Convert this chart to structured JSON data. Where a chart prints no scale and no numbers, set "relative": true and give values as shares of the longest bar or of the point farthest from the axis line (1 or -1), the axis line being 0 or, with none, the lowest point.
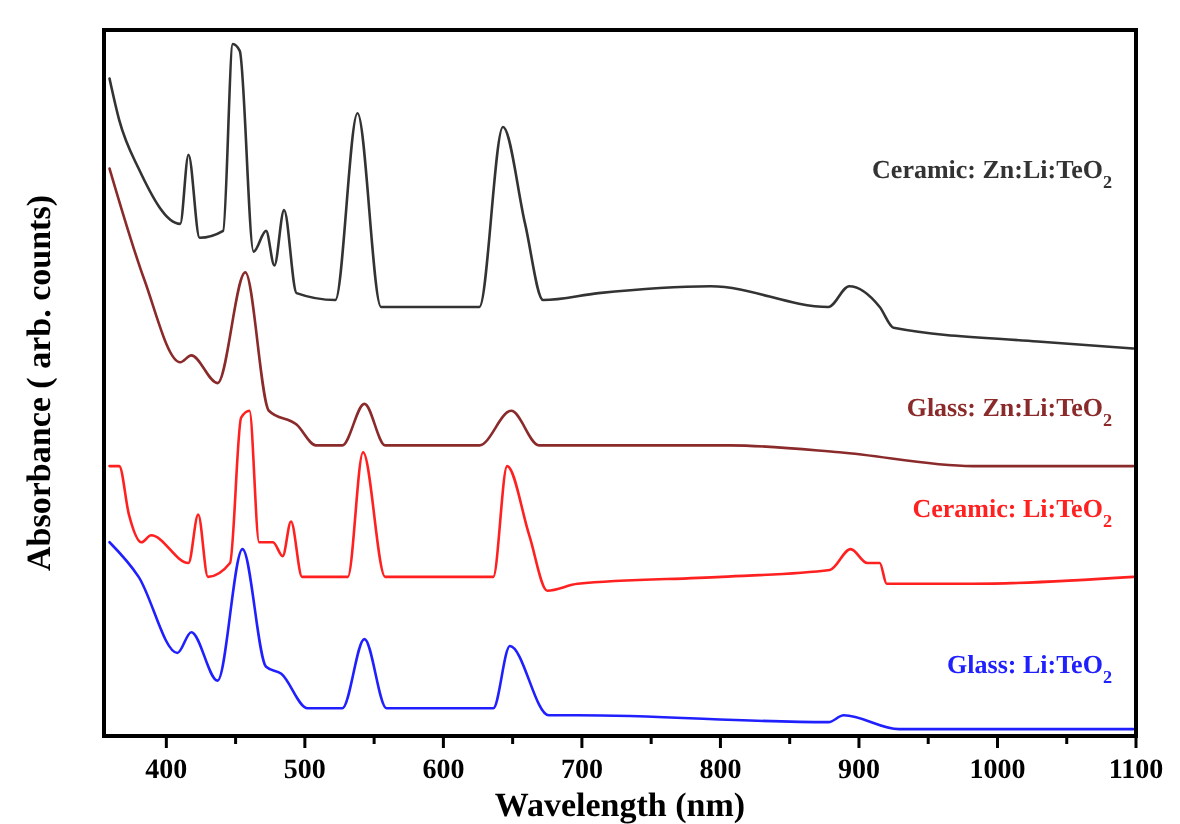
{
  "chart_data": {
    "type": "line",
    "relative": true,
    "xlabel": "Wavelength (nm)",
    "ylabel": "Absorbance ( arb. counts)",
    "xlim": [
      355,
      1100
    ],
    "xticks": [
      400,
      {
        "value": 450,
        "label": null
      },
      500,
      {
        "value": 550,
        "label": null
      },
      600,
      {
        "value": 650,
        "label": null
      },
      700,
      {
        "value": 750,
        "label": null
      },
      800,
      {
        "value": 850,
        "label": null
      },
      900,
      {
        "value": 950,
        "label": null
      },
      1000,
      {
        "value": 1050,
        "label": null
      },
      1100
    ],
    "grid": false,
    "marker": "none",
    "line_style": "solid",
    "series": [
      {
        "name": "Ceramic: Zn:Li:TeO$_{2}$",
        "color": "#333333",
        "x": [
          359,
          366,
          380,
          410,
          416,
          424,
          441,
          448,
          453,
          463,
          472,
          478,
          485,
          494,
          522,
          538,
          555,
          626,
          643,
          659,
          672,
          712,
          793,
          878,
          893,
          915,
          925,
          1029,
          1098
        ],
        "values": [
          0.95,
          0.89,
          0.82,
          0.74,
          0.84,
          0.72,
          0.73,
          1.0,
          0.99,
          0.7,
          0.73,
          0.68,
          0.76,
          0.64,
          0.63,
          0.9,
          0.62,
          0.62,
          0.88,
          0.74,
          0.63,
          0.64,
          0.65,
          0.62,
          0.65,
          0.62,
          0.59,
          0.57,
          0.56
        ]
      },
      {
        "name": "Glass: Zn:Li:TeO$_{2}$",
        "color": "#8b2a2a",
        "x": [
          359,
          384,
          410,
          418,
          437,
          457,
          474,
          494,
          508,
          527,
          543,
          558,
          626,
          649,
          669,
          744,
          807,
          886,
          982,
          1098
        ],
        "values": [
          0.82,
          0.66,
          0.54,
          0.55,
          0.51,
          0.67,
          0.47,
          0.45,
          0.42,
          0.42,
          0.48,
          0.42,
          0.42,
          0.47,
          0.42,
          0.42,
          0.42,
          0.41,
          0.39,
          0.39
        ]
      },
      {
        "name": "Ceramic: Li:TeO$_{2}$",
        "color": "#ff2020",
        "x": [
          359,
          366,
          373,
          382,
          389,
          416,
          423,
          430,
          446,
          454,
          460,
          467,
          477,
          484,
          490,
          498,
          531,
          542,
          558,
          636,
          646,
          662,
          675,
          697,
          801,
          879,
          894,
          906,
          915,
          920,
          982,
          1098
        ],
        "values": [
          0.39,
          0.39,
          0.32,
          0.28,
          0.29,
          0.25,
          0.32,
          0.23,
          0.25,
          0.46,
          0.47,
          0.28,
          0.28,
          0.26,
          0.31,
          0.23,
          0.23,
          0.41,
          0.23,
          0.23,
          0.39,
          0.29,
          0.21,
          0.22,
          0.23,
          0.24,
          0.27,
          0.25,
          0.25,
          0.22,
          0.22,
          0.23
        ]
      },
      {
        "name": "Glass: Li:TeO$_{2}$",
        "color": "#2020ff",
        "x": [
          359,
          380,
          408,
          418,
          437,
          455,
          472,
          483,
          502,
          527,
          543,
          559,
          636,
          648,
          676,
          697,
          878,
          889,
          929,
          1098
        ],
        "values": [
          0.28,
          0.23,
          0.12,
          0.15,
          0.08,
          0.27,
          0.1,
          0.09,
          0.04,
          0.04,
          0.14,
          0.04,
          0.04,
          0.13,
          0.03,
          0.03,
          0.02,
          0.03,
          0.01,
          0.01
        ]
      }
    ]
  }
}
